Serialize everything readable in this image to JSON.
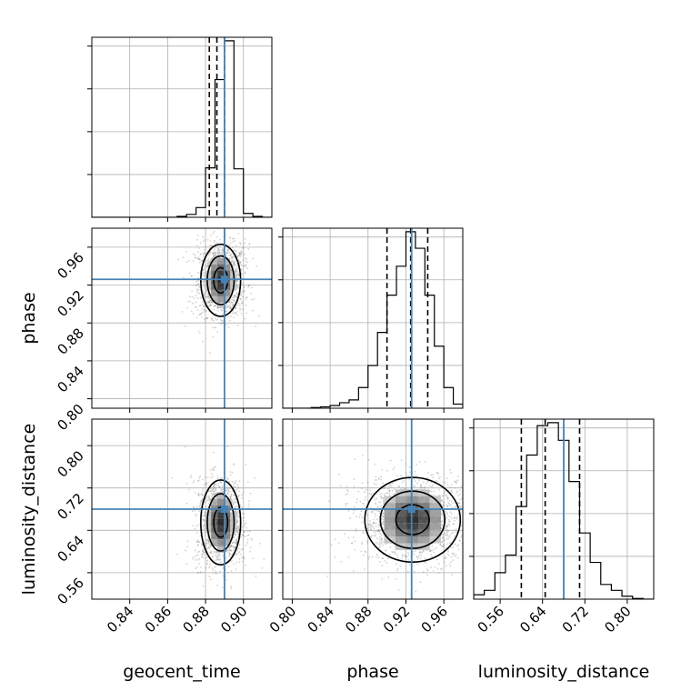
{
  "chart_data": {
    "type": "corner",
    "parameters": [
      "geocent_time",
      "phase",
      "luminosity_distance"
    ],
    "axes": {
      "geocent_time": {
        "lim": [
          0.82,
          0.915
        ],
        "ticks": [
          "0.84",
          "0.86",
          "0.88",
          "0.90"
        ],
        "truth": 0.89,
        "quantiles": [
          0.882,
          0.886,
          0.89
        ]
      },
      "phase": {
        "lim": [
          0.79,
          0.98
        ],
        "ticks": [
          "0.80",
          "0.84",
          "0.88",
          "0.92",
          "0.96"
        ],
        "truth": 0.926,
        "quantiles": [
          0.9,
          0.925,
          0.943
        ]
      },
      "luminosity_distance": {
        "lim": [
          0.51,
          0.85
        ],
        "ticks": [
          "0.56",
          "0.64",
          "0.72",
          "0.80"
        ],
        "truth": 0.68,
        "quantiles": [
          0.6,
          0.645,
          0.71
        ]
      }
    },
    "histograms": {
      "geocent_time": {
        "edges": [
          0.82,
          0.825,
          0.83,
          0.835,
          0.84,
          0.845,
          0.85,
          0.855,
          0.86,
          0.865,
          0.87,
          0.875,
          0.88,
          0.885,
          0.89,
          0.895,
          0.9,
          0.905,
          0.91,
          0.915
        ],
        "counts": [
          0,
          0,
          0,
          0,
          0,
          0,
          0,
          0,
          0,
          1,
          3,
          10,
          51,
          142,
          182,
          50,
          4,
          1,
          0
        ]
      },
      "phase": {
        "edges": [
          0.79,
          0.8,
          0.81,
          0.82,
          0.83,
          0.84,
          0.85,
          0.86,
          0.87,
          0.88,
          0.89,
          0.9,
          0.91,
          0.92,
          0.93,
          0.94,
          0.95,
          0.96,
          0.97,
          0.98
        ],
        "counts": [
          0,
          0,
          0,
          0.5,
          1,
          2,
          4,
          6,
          15,
          31,
          55,
          82,
          103,
          128,
          116,
          82,
          45,
          15,
          3
        ]
      },
      "luminosity_distance": {
        "edges": [
          0.51,
          0.53,
          0.55,
          0.57,
          0.59,
          0.61,
          0.63,
          0.65,
          0.67,
          0.69,
          0.71,
          0.73,
          0.75,
          0.77,
          0.79,
          0.81,
          0.83,
          0.85
        ],
        "counts": [
          3,
          6,
          18,
          30,
          63,
          98,
          118,
          120,
          108,
          80,
          45,
          25,
          10,
          6,
          2,
          0.5,
          0
        ]
      }
    },
    "pairs": [
      {
        "x": "geocent_time",
        "y": "phase",
        "center": [
          0.888,
          0.925
        ],
        "sigma": [
          0.005,
          0.019
        ]
      },
      {
        "x": "geocent_time",
        "y": "luminosity_distance",
        "center": [
          0.888,
          0.655
        ],
        "sigma": [
          0.005,
          0.04
        ]
      },
      {
        "x": "phase",
        "y": "luminosity_distance",
        "center": [
          0.927,
          0.66
        ],
        "sigma": [
          0.024,
          0.04
        ]
      }
    ],
    "grid": true,
    "truth_color": "#4682b4",
    "hist_color": "#000000",
    "scatter_color": "#808080"
  }
}
